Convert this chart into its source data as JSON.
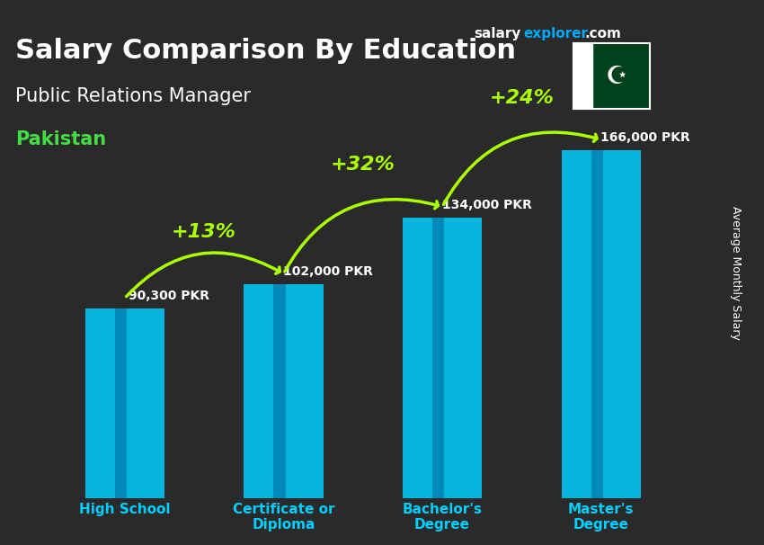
{
  "title_main": "Salary Comparison By Education",
  "title_salary": "salary",
  "title_explorer": "explorer",
  "title_com": ".com",
  "subtitle": "Public Relations Manager",
  "country": "Pakistan",
  "ylabel": "Average Monthly Salary",
  "categories": [
    "High School",
    "Certificate or\nDiploma",
    "Bachelor's\nDegree",
    "Master's\nDegree"
  ],
  "values": [
    90300,
    102000,
    134000,
    166000
  ],
  "value_labels": [
    "90,300 PKR",
    "102,000 PKR",
    "134,000 PKR",
    "166,000 PKR"
  ],
  "pct_changes": [
    "+13%",
    "+32%",
    "+24%"
  ],
  "bar_color_top": "#00cfff",
  "bar_color_mid": "#00aadd",
  "bar_color_bottom": "#0077aa",
  "bar_width": 0.5,
  "background_color": "#1a1a2e",
  "title_color": "#ffffff",
  "country_color": "#44dd44",
  "value_color": "#ffffff",
  "pct_color": "#aaff00",
  "arrow_color": "#aaff00",
  "xlabel_color": "#00cfff",
  "ylim_max": 200000,
  "flag_green": "#006600",
  "flag_white": "#ffffff"
}
